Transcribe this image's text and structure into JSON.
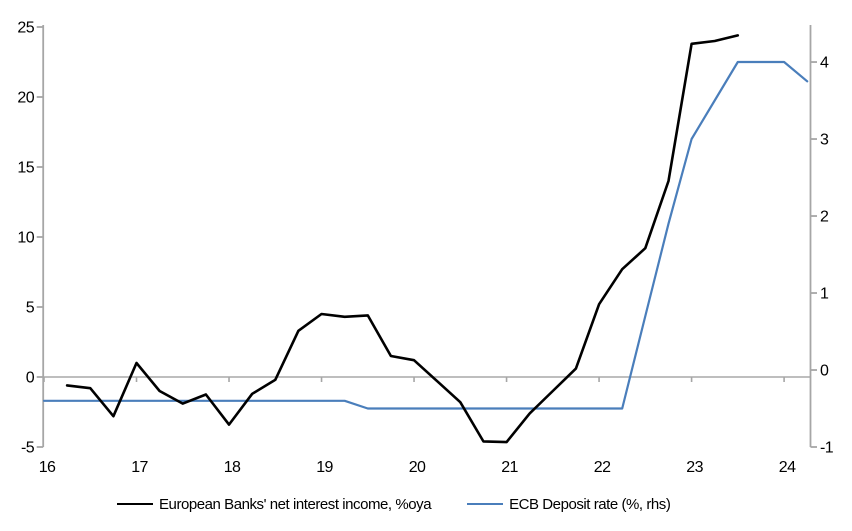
{
  "colors": {
    "background": "#ffffff",
    "axis": "#a6a6a6",
    "zero_line": "#a9a9a9",
    "text": "#000000",
    "series_black": "#000000",
    "series_blue": "#4a7ebb"
  },
  "chart_data": {
    "type": "line",
    "title": "",
    "grid": "zero-line-only",
    "legend_position": "bottom",
    "x_axis": {
      "ticks": [
        "16",
        "17",
        "18",
        "19",
        "20",
        "21",
        "22",
        "23",
        "24"
      ],
      "tick_values": [
        16,
        17,
        18,
        19,
        20,
        21,
        22,
        23,
        24
      ],
      "range": [
        16,
        24.28
      ]
    },
    "left_axis": {
      "ticks": [
        "-5",
        "0",
        "5",
        "10",
        "15",
        "20",
        "25"
      ],
      "tick_values": [
        -5,
        0,
        5,
        10,
        15,
        20,
        25
      ],
      "range": [
        -5,
        25
      ]
    },
    "right_axis": {
      "ticks": [
        "-1",
        "0",
        "1",
        "2",
        "3",
        "4"
      ],
      "tick_values": [
        -1,
        0,
        1,
        2,
        3,
        4
      ],
      "range": [
        -1,
        4.455
      ]
    },
    "series": [
      {
        "name": "European Banks' net interest income, %oya",
        "axis": "left",
        "color": "#000000",
        "line_width": 2.6,
        "x": [
          16.25,
          16.5,
          16.75,
          17.0,
          17.25,
          17.5,
          17.75,
          18.0,
          18.25,
          18.5,
          18.75,
          19.0,
          19.25,
          19.5,
          19.75,
          20.0,
          20.25,
          20.5,
          20.75,
          21.0,
          21.25,
          21.5,
          21.75,
          22.0,
          22.25,
          22.5,
          22.75,
          23.0,
          23.25,
          23.5
        ],
        "values": [
          -0.6,
          -0.8,
          -2.8,
          1.0,
          -1.0,
          -1.9,
          -1.25,
          -3.4,
          -1.2,
          -0.2,
          3.3,
          4.5,
          4.3,
          4.4,
          1.5,
          1.2,
          -0.3,
          -1.8,
          -4.6,
          -4.65,
          -2.6,
          -1.0,
          0.6,
          5.2,
          7.7,
          9.2,
          14.0,
          23.8,
          24.0,
          24.4
        ]
      },
      {
        "name": "ECB Deposit rate (%, rhs)",
        "axis": "right",
        "color": "#4a7ebb",
        "line_width": 2.2,
        "x": [
          16.0,
          16.25,
          16.5,
          16.75,
          17.0,
          17.25,
          17.5,
          17.75,
          18.0,
          18.25,
          18.5,
          18.75,
          19.0,
          19.25,
          19.5,
          19.75,
          20.0,
          20.25,
          20.5,
          20.75,
          21.0,
          21.25,
          21.5,
          21.75,
          22.0,
          22.25,
          22.5,
          22.75,
          23.0,
          23.25,
          23.5,
          23.75,
          24.0,
          24.25
        ],
        "values": [
          -0.4,
          -0.4,
          -0.4,
          -0.4,
          -0.4,
          -0.4,
          -0.4,
          -0.4,
          -0.4,
          -0.4,
          -0.4,
          -0.4,
          -0.4,
          -0.4,
          -0.5,
          -0.5,
          -0.5,
          -0.5,
          -0.5,
          -0.5,
          -0.5,
          -0.5,
          -0.5,
          -0.5,
          -0.5,
          -0.5,
          0.7,
          1.9,
          3.0,
          3.5,
          4.0,
          4.0,
          4.0,
          3.75
        ]
      }
    ]
  }
}
